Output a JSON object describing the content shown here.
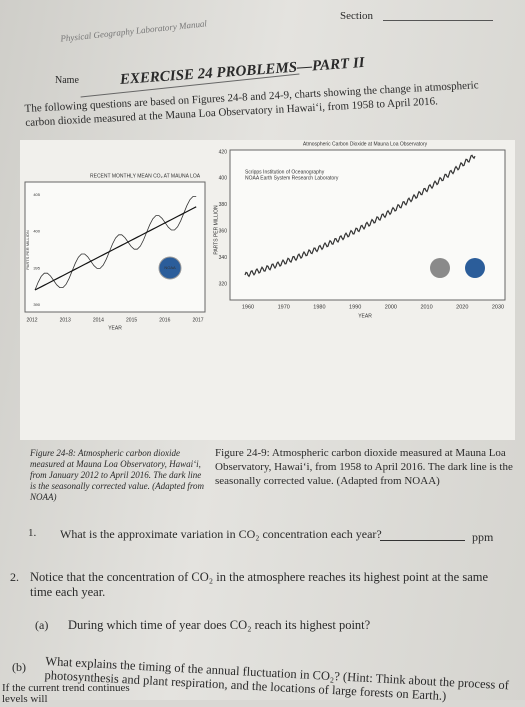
{
  "header": {
    "manual": "Physical Geography Laboratory Manual",
    "section": "Section",
    "name": "Name"
  },
  "title": "EXERCISE 24 PROBLEMS—PART II",
  "intro": "The following questions are based on Figures 24-8 and 24-9, charts showing the change in atmospheric carbon dioxide measured at the Mauna Loa Observatory in Hawai‘i, from 1958 to April 2016.",
  "figure_8": {
    "title": "RECENT MONTHLY MEAN CO₂ AT MAUNA LOA",
    "y_label": "PARTS PER MILLION",
    "x_label": "YEAR",
    "yticks": [
      405,
      400,
      395,
      390
    ],
    "xticks": [
      2012,
      2013,
      2014,
      2015,
      2016,
      2017
    ],
    "logo": "NOAA",
    "caption": "Figure 24-8: Atmospheric carbon dioxide measured at Mauna Loa Observatory, Hawai‘i, from January 2012 to April 2016. The dark line is the seasonally corrected value. (Adapted from NOAA)"
  },
  "figure_9": {
    "title": "Atmospheric Carbon Dioxide at Mauna Loa Observatory",
    "credit_1": "Scripps Institution of Oceanography",
    "credit_2": "NOAA Earth System Research Laboratory",
    "y_label": "PARTS PER MILLION",
    "x_label": "YEAR",
    "yticks": [
      420,
      400,
      380,
      360,
      340,
      320
    ],
    "xticks": [
      1960,
      1970,
      1980,
      1990,
      2000,
      2010,
      2020,
      2030
    ],
    "caption": "Figure 24-9: Atmospheric carbon dioxide measured at Mauna Loa Observatory, Hawai‘i, from 1958 to April 2016. The dark line is the seasonally corrected value. (Adapted from NOAA)"
  },
  "questions": [
    {
      "number": "1.",
      "text": "What is the approximate variation in CO₂ concentration each year?",
      "unit": "ppm"
    },
    {
      "number": "2.",
      "text": "Notice that the concentration of CO₂ in the atmosphere reaches its highest point at the same time each year."
    },
    {
      "number": "(a)",
      "text": "During which time of year does CO₂ reach its highest point?"
    },
    {
      "number": "(b)",
      "text": "What explains the timing of the annual fluctuation in CO₂? (Hint: Think about the process of photosynthesis and plant respiration, and the locations of large forests on Earth.)"
    }
  ],
  "footer": "If the current trend continues levels will"
}
